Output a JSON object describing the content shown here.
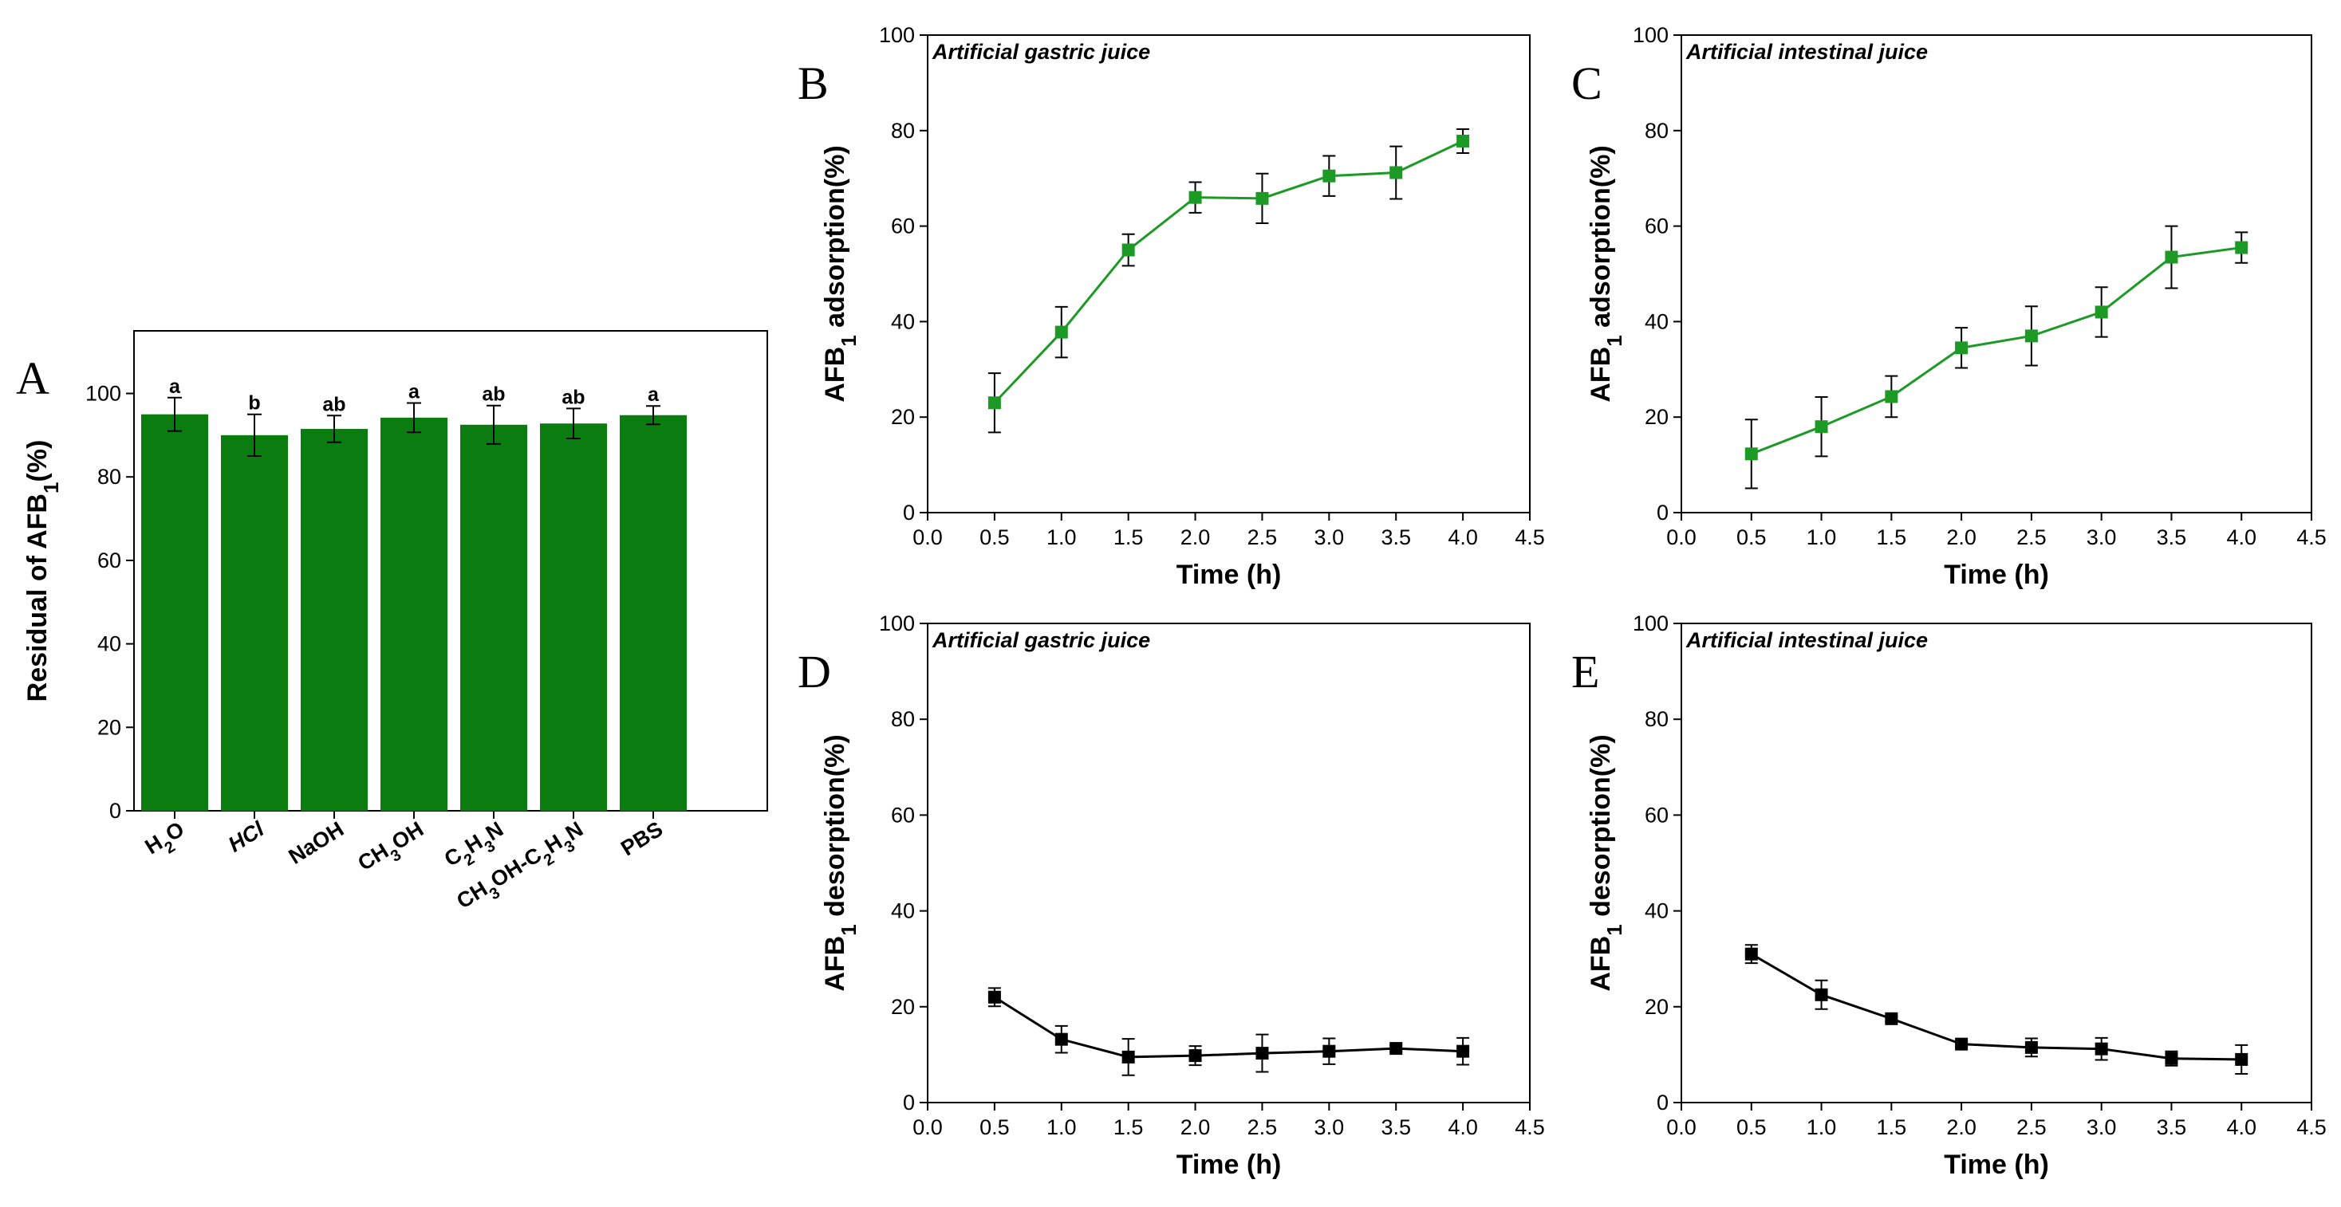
{
  "chart_data": [
    {
      "id": "A",
      "panel_label": "A",
      "type": "bar",
      "title": "",
      "xlabel": "",
      "ylabel_main": "Residual of AFB",
      "ylabel_sub": "1",
      "ylabel_tail": "(%)",
      "ylim": [
        0,
        115
      ],
      "yticks": [
        0,
        20,
        40,
        60,
        80,
        100
      ],
      "bar_color": "#0a7c10",
      "categories": [
        {
          "label": "H2O",
          "parts": [
            [
              "H",
              ""
            ],
            [
              "2",
              "sub"
            ],
            [
              "O",
              ""
            ]
          ],
          "italic": false
        },
        {
          "label": "HCl",
          "parts": [
            [
              "HCl",
              ""
            ]
          ],
          "italic": true
        },
        {
          "label": "NaOH",
          "parts": [
            [
              "NaOH",
              ""
            ]
          ],
          "italic": false
        },
        {
          "label": "CH3OH",
          "parts": [
            [
              "CH",
              ""
            ],
            [
              "3",
              "sub"
            ],
            [
              "OH",
              ""
            ]
          ],
          "italic": false
        },
        {
          "label": "C2H3N",
          "parts": [
            [
              "C",
              ""
            ],
            [
              "2",
              "sub"
            ],
            [
              "H",
              ""
            ],
            [
              "3",
              "sub"
            ],
            [
              "N",
              ""
            ]
          ],
          "italic": false
        },
        {
          "label": "CH3OH-C2H3N",
          "parts": [
            [
              "CH",
              ""
            ],
            [
              "3",
              "sub"
            ],
            [
              "OH-C",
              ""
            ],
            [
              "2",
              "sub"
            ],
            [
              "H",
              ""
            ],
            [
              "3",
              "sub"
            ],
            [
              "N",
              ""
            ]
          ],
          "italic": false
        },
        {
          "label": "PBS",
          "parts": [
            [
              "PBS",
              ""
            ]
          ],
          "italic": false
        }
      ],
      "values": [
        95,
        90,
        91.5,
        94.2,
        92.5,
        92.8,
        94.8
      ],
      "errors": [
        4,
        5,
        3.2,
        3.5,
        4.6,
        3.6,
        2.2
      ],
      "significance": [
        "a",
        "b",
        "ab",
        "a",
        "ab",
        "ab",
        "a"
      ]
    },
    {
      "id": "B",
      "panel_label": "B",
      "type": "line",
      "annotation": "Artificial gastric juice",
      "xlabel": "Time (h)",
      "ylabel_main": "AFB",
      "ylabel_sub": "1",
      "ylabel_tail": " adsorption(%)",
      "xlim": [
        0,
        4.5
      ],
      "ylim": [
        0,
        100
      ],
      "xticks": [
        "0.0",
        "0.5",
        "1.0",
        "1.5",
        "2.0",
        "2.5",
        "3.0",
        "3.5",
        "4.0",
        "4.5"
      ],
      "yticks": [
        0,
        20,
        40,
        60,
        80,
        100
      ],
      "color": "#1d9a26",
      "x": [
        0.5,
        1.0,
        1.5,
        2.0,
        2.5,
        3.0,
        3.5,
        4.0
      ],
      "y": [
        23,
        37.8,
        55,
        66,
        65.8,
        70.5,
        71.2,
        77.8
      ],
      "err": [
        6.2,
        5.3,
        3.3,
        3.2,
        5.2,
        4.2,
        5.5,
        2.5
      ]
    },
    {
      "id": "C",
      "panel_label": "C",
      "type": "line",
      "annotation": "Artificial intestinal juice",
      "xlabel": "Time (h)",
      "ylabel_main": "AFB",
      "ylabel_sub": "1",
      "ylabel_tail": " adsorption(%)",
      "xlim": [
        0,
        4.5
      ],
      "ylim": [
        0,
        100
      ],
      "xticks": [
        "0.0",
        "0.5",
        "1.0",
        "1.5",
        "2.0",
        "2.5",
        "3.0",
        "3.5",
        "4.0",
        "4.5"
      ],
      "yticks": [
        0,
        20,
        40,
        60,
        80,
        100
      ],
      "color": "#1d9a26",
      "x": [
        0.5,
        1.0,
        1.5,
        2.0,
        2.5,
        3.0,
        3.5,
        4.0
      ],
      "y": [
        12.3,
        18,
        24.3,
        34.5,
        37,
        42,
        53.5,
        55.5
      ],
      "err": [
        7.2,
        6.2,
        4.3,
        4.2,
        6.2,
        5.2,
        6.5,
        3.2
      ]
    },
    {
      "id": "D",
      "panel_label": "D",
      "type": "line",
      "annotation": "Artificial gastric juice",
      "xlabel": "Time (h)",
      "ylabel_main": "AFB",
      "ylabel_sub": "1",
      "ylabel_tail": " desorption(%)",
      "xlim": [
        0,
        4.5
      ],
      "ylim": [
        0,
        100
      ],
      "xticks": [
        "0.0",
        "0.5",
        "1.0",
        "1.5",
        "2.0",
        "2.5",
        "3.0",
        "3.5",
        "4.0",
        "4.5"
      ],
      "yticks": [
        0,
        20,
        40,
        60,
        80,
        100
      ],
      "color": "#000000",
      "x": [
        0.5,
        1.0,
        1.5,
        2.0,
        2.5,
        3.0,
        3.5,
        4.0
      ],
      "y": [
        22,
        13.2,
        9.5,
        9.8,
        10.3,
        10.7,
        11.3,
        10.7
      ],
      "err": [
        1.9,
        2.8,
        3.8,
        2.0,
        3.9,
        2.7,
        0.7,
        2.8
      ]
    },
    {
      "id": "E",
      "panel_label": "E",
      "type": "line",
      "annotation": "Artificial intestinal juice",
      "xlabel": "Time (h)",
      "ylabel_main": "AFB",
      "ylabel_sub": "1",
      "ylabel_tail": " desorption(%)",
      "xlim": [
        0,
        4.5
      ],
      "ylim": [
        0,
        100
      ],
      "xticks": [
        "0.0",
        "0.5",
        "1.0",
        "1.5",
        "2.0",
        "2.5",
        "3.0",
        "3.5",
        "4.0",
        "4.5"
      ],
      "yticks": [
        0,
        20,
        40,
        60,
        80,
        100
      ],
      "color": "#000000",
      "x": [
        0.5,
        1.0,
        1.5,
        2.0,
        2.5,
        3.0,
        3.5,
        4.0
      ],
      "y": [
        31,
        22.5,
        17.5,
        12.2,
        11.5,
        11.2,
        9.2,
        9
      ],
      "err": [
        1.9,
        3.0,
        0.5,
        0.5,
        1.9,
        2.3,
        1.5,
        3.0
      ]
    }
  ]
}
